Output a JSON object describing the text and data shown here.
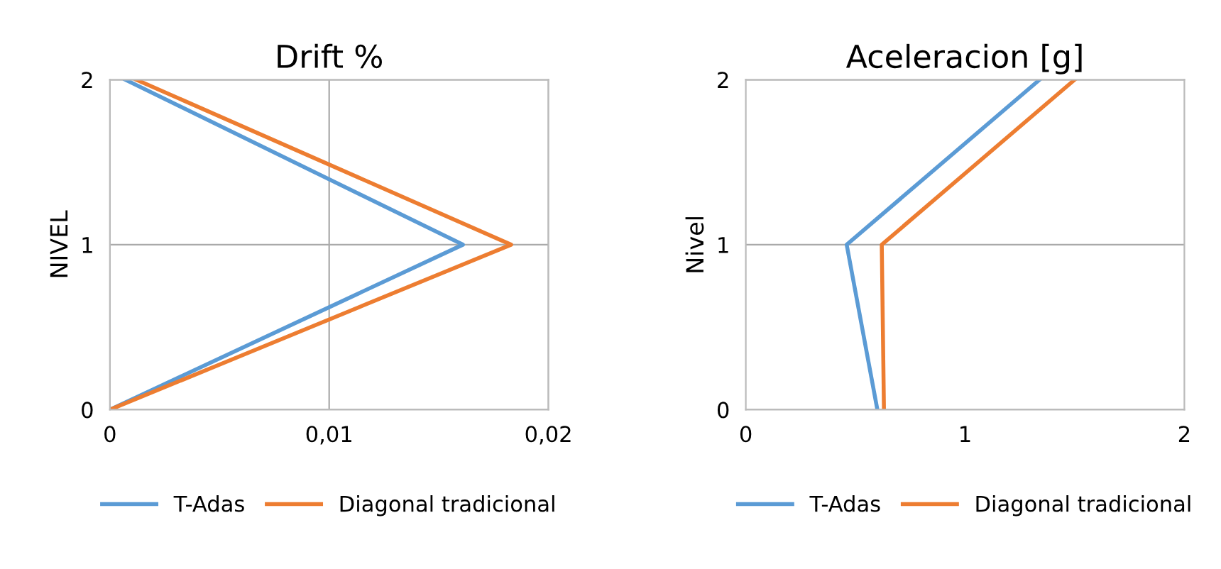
{
  "chart_data": [
    {
      "type": "line",
      "title": "Drift %",
      "ylabel": "NIVEL",
      "xlim": [
        0,
        0.02
      ],
      "xticks": [
        0,
        {
          "value": 0.01,
          "label": "0,01"
        },
        {
          "value": 0.02,
          "label": "0,02"
        }
      ],
      "ylim": [
        0,
        2
      ],
      "yticks": [
        0,
        1,
        2
      ],
      "grid": true,
      "legend": "bottom",
      "series": [
        {
          "name": "T-Adas",
          "color": "#5b9bd5",
          "x": [
            0,
            0.0161,
            0.0007
          ],
          "values": [
            0,
            1,
            2
          ]
        },
        {
          "name": "Diagonal tradicional",
          "color": "#ed7d31",
          "x": [
            0,
            0.0183,
            0.0012
          ],
          "values": [
            0,
            1,
            2
          ]
        }
      ]
    },
    {
      "type": "line",
      "title": "Aceleracion [g]",
      "ylabel": "Nivel",
      "xlim": [
        0,
        2
      ],
      "xticks": [
        0,
        1,
        2
      ],
      "ylim": [
        0,
        2
      ],
      "yticks": [
        0,
        1,
        2
      ],
      "grid": "y",
      "legend": "bottom",
      "series": [
        {
          "name": "T-Adas",
          "color": "#5b9bd5",
          "x": [
            0.6,
            0.46,
            1.34
          ],
          "values": [
            0,
            1,
            2
          ]
        },
        {
          "name": "Diagonal tradicional",
          "color": "#ed7d31",
          "x": [
            0.63,
            0.62,
            1.5
          ],
          "values": [
            0,
            1,
            2
          ]
        }
      ]
    }
  ]
}
